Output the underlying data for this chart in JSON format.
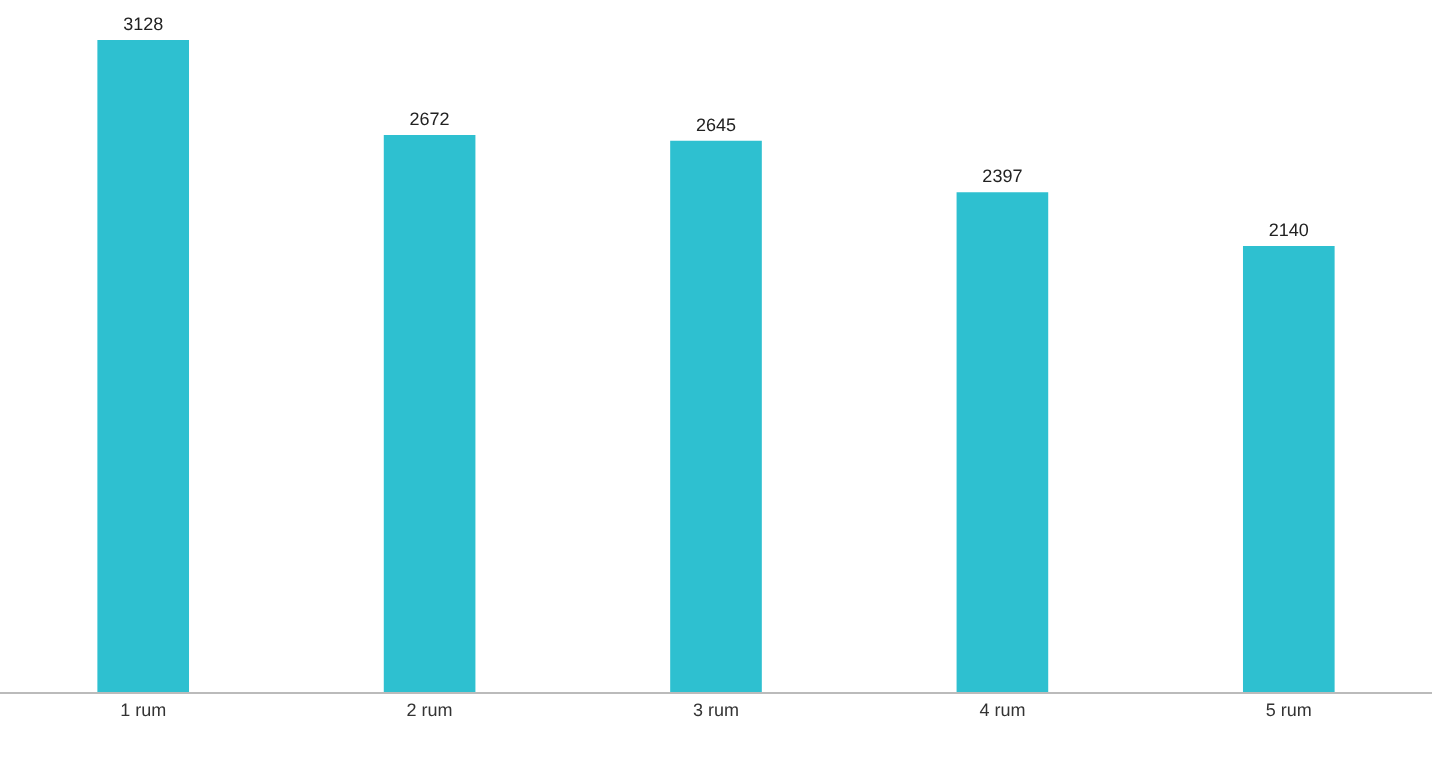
{
  "chart_data": {
    "type": "bar",
    "categories": [
      "1 rum",
      "2 rum",
      "3 rum",
      "4 rum",
      "5 rum"
    ],
    "values": [
      3128,
      2672,
      2645,
      2397,
      2140
    ],
    "color": "#2ec0d0",
    "data_labels": true
  }
}
